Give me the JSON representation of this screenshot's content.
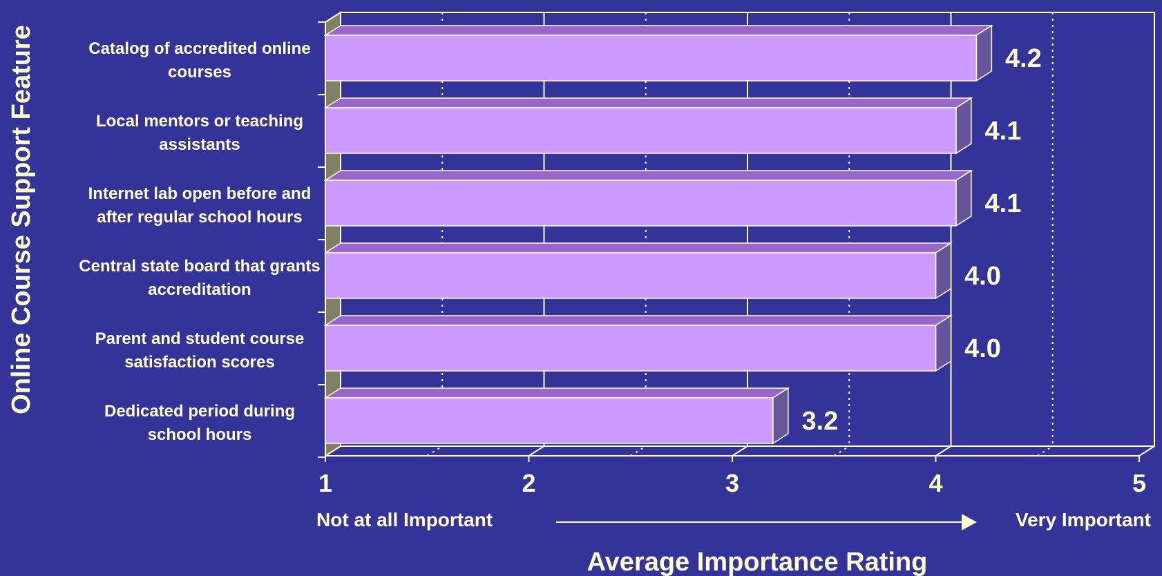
{
  "chart_data": {
    "type": "bar",
    "orientation": "horizontal",
    "three_d": true,
    "categories": [
      "Catalog of accredited online courses",
      "Local mentors or teaching assistants",
      "Internet lab open before and after regular school hours",
      "Central state board that grants accreditation",
      "Parent and student course satisfaction scores",
      "Dedicated period during school hours"
    ],
    "category_lines": [
      [
        "Catalog of accredited online",
        "courses"
      ],
      [
        "Local mentors or teaching",
        "assistants"
      ],
      [
        "Internet lab open before and",
        "after regular school hours"
      ],
      [
        "Central state board that grants",
        "accreditation"
      ],
      [
        "Parent and student course",
        "satisfaction scores"
      ],
      [
        "Dedicated period during",
        "school hours"
      ]
    ],
    "values": [
      4.2,
      4.1,
      4.1,
      4.0,
      4.0,
      3.2
    ],
    "value_labels": [
      "4.2",
      "4.1",
      "4.1",
      "4.0",
      "4.0",
      "3.2"
    ],
    "xlim": [
      1,
      5
    ],
    "x_ticks": [
      "1",
      "2",
      "3",
      "4",
      "5"
    ],
    "x_ticks_values": [
      1,
      2,
      3,
      4,
      5
    ],
    "xlabel": "Average Importance Rating",
    "ylabel": "Online Course Support Feature",
    "scale_low_label": "Not at all Important",
    "scale_high_label": "Very Important",
    "grid": true,
    "colors": {
      "background": "#333399",
      "bar_front": "#cc99ff",
      "bar_top": "#9966cc",
      "bar_side": "#66559a",
      "text": "#ffffcc",
      "axis_lines": "#ffffcc",
      "floor_edge": "#808066"
    }
  }
}
